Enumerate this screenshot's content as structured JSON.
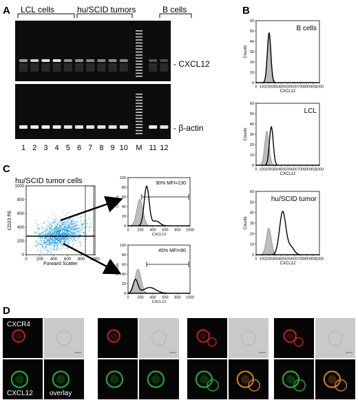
{
  "panels": {
    "a": {
      "letter": "A",
      "groups": [
        "LCL cells",
        "hu/SCID tumors",
        "B cells"
      ],
      "gene_top": "- CXCL12",
      "gene_bottom": "- β-actin",
      "lanes": [
        "1",
        "2",
        "3",
        "4",
        "5",
        "6",
        "7",
        "8",
        "9",
        "10",
        "M",
        "11",
        "12"
      ],
      "cxcl12_band_intensity": [
        0.5,
        0.75,
        0.85,
        0.85,
        0.45,
        0.45,
        0.4,
        0.38,
        0.42,
        0.4,
        null,
        0.12,
        0.08
      ],
      "actin_band_intensity": [
        0.9,
        0.9,
        0.9,
        0.9,
        0.85,
        0.85,
        0.85,
        0.85,
        0.85,
        0.85,
        null,
        0.9,
        0.85
      ]
    },
    "b": {
      "letter": "B",
      "plots": [
        {
          "label": "B cells",
          "ylabel": "Counts",
          "xlabel": "CXCL12",
          "xticks": [
            "0",
            "100",
            "200",
            "300",
            "400",
            "500",
            "600",
            "700",
            "800",
            "900",
            "1000"
          ],
          "yticks": [
            "0",
            "10",
            "20",
            "30",
            "40",
            "50",
            "60"
          ]
        },
        {
          "label": "LCL",
          "ylabel": "Counts",
          "xlabel": "CXCL12",
          "xticks": [
            "0",
            "100",
            "200",
            "300",
            "400",
            "500",
            "600",
            "700",
            "800",
            "900",
            "1000"
          ],
          "yticks": [
            "0",
            "10",
            "20",
            "30",
            "40",
            "50",
            "60"
          ]
        },
        {
          "label": "hu/SCID tumor",
          "ylabel": "Counts",
          "xlabel": "CXCL12",
          "xticks": [
            "0",
            "100",
            "200",
            "300",
            "400",
            "500",
            "600",
            "700",
            "800",
            "900",
            "1000"
          ],
          "yticks": [
            "0",
            "10",
            "20",
            "30",
            "40",
            "50",
            "60"
          ]
        }
      ]
    },
    "c": {
      "letter": "C",
      "scatter_title": "hu/SCID tumor cells",
      "scatter_ylabel": "CD23 PE",
      "scatter_xlabel": "Forward Scatter",
      "scatter_xticks": [
        "0",
        "200",
        "400",
        "600",
        "800",
        "1000"
      ],
      "scatter_yticks": [
        "0",
        "200",
        "400",
        "600",
        "800",
        "1000"
      ],
      "scatter_color": "#1e9be0",
      "hist_top_annot": "90%  MFI=230",
      "hist_bottom_annot": "45%  MFI=80",
      "hist_xlabel": "CXCL12",
      "hist_ylabel": "Counts",
      "hist_xticks": [
        "0",
        "200",
        "400",
        "600",
        "800",
        "1000"
      ],
      "hist_top_yticks": [
        "0",
        "20",
        "40",
        "60",
        "80",
        "100"
      ],
      "hist_bottom_yticks": [
        "0",
        "20",
        "40",
        "60",
        "80",
        "100"
      ]
    },
    "d": {
      "letter": "D",
      "channel_labels": [
        "CXCR4",
        "CXCL12",
        "overlay"
      ]
    }
  }
}
